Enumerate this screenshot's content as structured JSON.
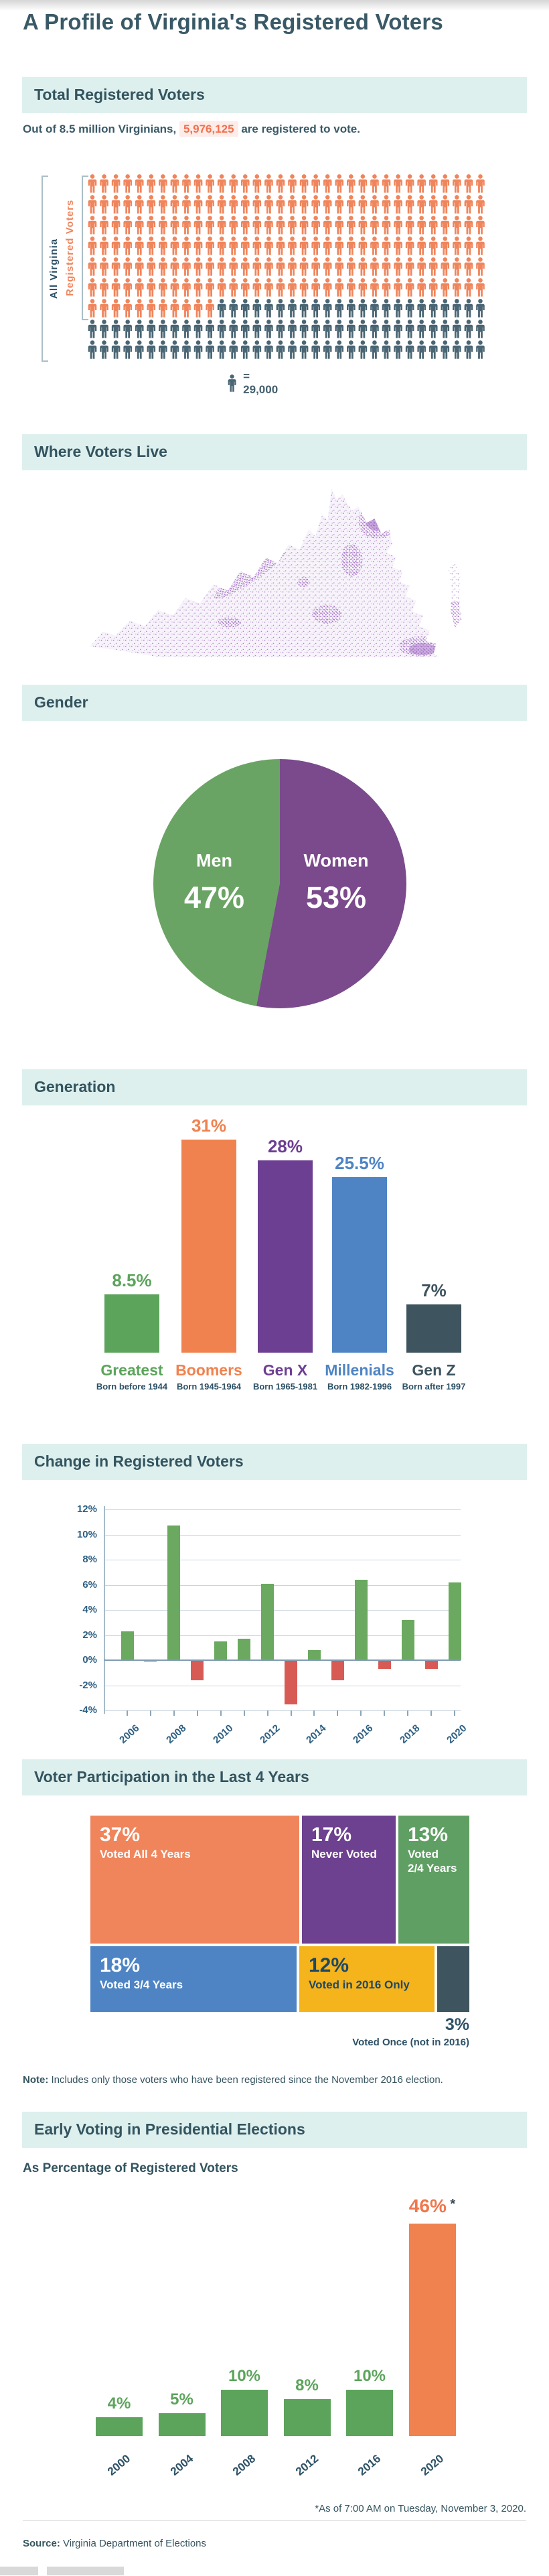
{
  "header": {
    "title": "A Profile of Virginia's Registered Voters"
  },
  "colors": {
    "band_bg": "#def0ee",
    "heading_text": "#33545f",
    "body_text": "#3a5967",
    "orange": "#f0855c",
    "dark_slate": "#4a6573",
    "highlight_orange": "#f2704e",
    "highlight_bg": "#fdece7",
    "map_purple": "#9c6cbe",
    "pie_green": "#6aa464",
    "pie_purple": "#7a4a8c",
    "chart_green": "#6aa95f",
    "chart_red": "#d85a55",
    "gen_green": "#5ca45c",
    "gen_orange": "#f0824f",
    "gen_purple": "#6d3f92",
    "gen_blue": "#4e84c4",
    "gen_dark": "#3e545e",
    "treemap_yellow": "#f5b31c",
    "axis_label_blue": "#2d5f82",
    "navy_label": "#2d5166"
  },
  "total": {
    "section_title": "Total Registered Voters",
    "intro_prefix": "Out of 8.5 million Virginians,",
    "intro_highlight": "5,976,125",
    "intro_suffix": "are registered to vote.",
    "all_label": "All Virginia",
    "registered_label": "Registered Voters",
    "legend_label": "= 29,000"
  },
  "map": {
    "section_title": "Where Voters Live"
  },
  "gender": {
    "section_title": "Gender"
  },
  "generation": {
    "section_title": "Generation"
  },
  "change": {
    "section_title": "Change in Registered Voters"
  },
  "participation": {
    "section_title": "Voter Participation in the Last 4 Years",
    "outside_value": "3%",
    "outside_label": "Voted Once (not in 2016)",
    "note_bold": "Note:",
    "note_text": " Includes only those voters who have been registered since the November 2016 election."
  },
  "early": {
    "section_title": "Early Voting in Presidential Elections",
    "subtitle": "As Percentage of Registered Voters",
    "footnote": "*As of 7:00 AM on Tuesday, November 3, 2020."
  },
  "footer": {
    "source_bold": "Source:",
    "source_text": " Virginia Department of Elections"
  },
  "chart_data": [
    {
      "id": "pictogram",
      "type": "pictogram",
      "title": "Total Registered Voters",
      "population_total": 8500000,
      "registered": 5976125,
      "icon_value": 29000,
      "icon_value_label": "= 29,000",
      "rows": 9,
      "per_row": 34,
      "registered_icons": 215,
      "groups": [
        {
          "label": "All Virginia",
          "color": "#4a6573"
        },
        {
          "label": "Registered Voters",
          "color": "#f0855c"
        }
      ]
    },
    {
      "id": "va_map",
      "type": "map",
      "title": "Where Voters Live",
      "description": "Purple dot-density map of Virginia; denser clusters in Northern Virginia, Richmond and Hampton Roads",
      "dot_color": "#9c6cbe"
    },
    {
      "id": "gender_pie",
      "type": "pie",
      "title": "Gender",
      "labels": [
        "Men",
        "Women"
      ],
      "values": [
        47,
        53
      ],
      "value_labels": [
        "47%",
        "53%"
      ],
      "colors": [
        "#6aa464",
        "#7a4a8c"
      ]
    },
    {
      "id": "generation_bar",
      "type": "bar",
      "title": "Generation",
      "categories": [
        "Greatest",
        "Boomers",
        "Gen X",
        "Millenials",
        "Gen Z"
      ],
      "sublabels": [
        "Born before 1944",
        "Born 1945-1964",
        "Born 1965-1981",
        "Born 1982-1996",
        "Born after 1997"
      ],
      "values": [
        8.5,
        31,
        28,
        25.5,
        7
      ],
      "value_labels": [
        "8.5%",
        "31%",
        "28%",
        "25.5%",
        "7%"
      ],
      "colors": [
        "#5ca45c",
        "#f0824f",
        "#6d3f92",
        "#4e84c4",
        "#3e545e"
      ],
      "ylim": [
        0,
        31
      ]
    },
    {
      "id": "change_bar",
      "type": "bar",
      "title": "Change in Registered Voters",
      "x": [
        2006,
        2007,
        2008,
        2009,
        2010,
        2011,
        2012,
        2013,
        2014,
        2015,
        2016,
        2017,
        2018,
        2019,
        2020
      ],
      "values": [
        2.3,
        -0.1,
        10.7,
        -1.6,
        1.5,
        1.7,
        6.1,
        -3.5,
        0.8,
        -1.6,
        6.4,
        -0.7,
        3.2,
        -0.7,
        6.2
      ],
      "positive_color": "#6aa95f",
      "negative_color": "#d85a55",
      "ylim": [
        -4,
        12
      ],
      "ytick_labels": [
        "12%",
        "10%",
        "8%",
        "6%",
        "4%",
        "2%",
        "0%",
        "-2%",
        "-4%"
      ],
      "xtick_labels": [
        "2006",
        "2008",
        "2010",
        "2012",
        "2014",
        "2016",
        "2018",
        "2020"
      ],
      "grid": true
    },
    {
      "id": "participation_treemap",
      "type": "treemap",
      "title": "Voter Participation in the Last 4 Years",
      "items": [
        {
          "value": 37,
          "value_label": "37%",
          "label": "Voted All 4 Years",
          "color": "#f0855c",
          "text_color": "#ffffff"
        },
        {
          "value": 17,
          "value_label": "17%",
          "label": "Never Voted",
          "color": "#6d4090",
          "text_color": "#ffffff"
        },
        {
          "value": 13,
          "value_label": "13%",
          "label": "Voted\n2/4 Years",
          "color": "#5f9f63",
          "text_color": "#ffffff"
        },
        {
          "value": 18,
          "value_label": "18%",
          "label": "Voted 3/4 Years",
          "color": "#4e84c4",
          "text_color": "#ffffff"
        },
        {
          "value": 12,
          "value_label": "12%",
          "label": "Voted in 2016 Only",
          "color": "#f5b31c",
          "text_color": "#1c4966"
        },
        {
          "value": 3,
          "value_label": "3%",
          "label": "Voted Once (not in 2016)",
          "color": "#3e545e",
          "text_color": "#2d5166",
          "label_outside": true
        }
      ],
      "note": "Note: Includes only those voters who have been registered since the November 2016 election."
    },
    {
      "id": "early_voting_bar",
      "type": "bar",
      "title": "Early Voting in Presidential Elections",
      "subtitle": "As Percentage of Registered Voters",
      "categories": [
        "2000",
        "2004",
        "2008",
        "2012",
        "2016",
        "2020"
      ],
      "values": [
        4,
        5,
        10,
        8,
        10,
        46
      ],
      "value_labels": [
        "4%",
        "5%",
        "10%",
        "8%",
        "10%",
        "46%"
      ],
      "colors": [
        "#5ca45c",
        "#5ca45c",
        "#5ca45c",
        "#5ca45c",
        "#5ca45c",
        "#f0824f"
      ],
      "annotation_marker": "*",
      "footnote": "*As of 7:00 AM on Tuesday, November 3, 2020.",
      "ylim": [
        0,
        46
      ]
    }
  ]
}
